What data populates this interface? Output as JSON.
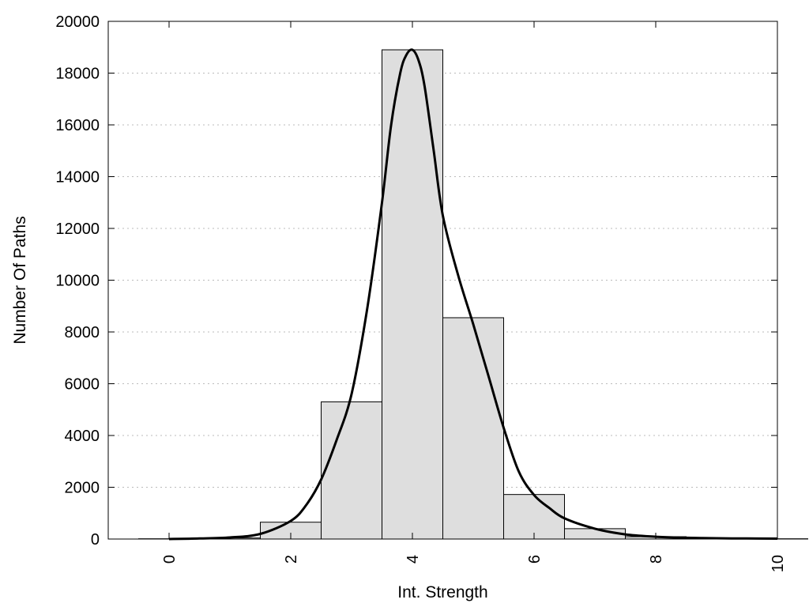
{
  "chart_data": {
    "type": "bar",
    "title": "",
    "xlabel": "Int. Strength",
    "ylabel": "Number Of Paths",
    "xlim": [
      -1,
      10
    ],
    "ylim": [
      0,
      20000
    ],
    "grid": "horizontal dotted",
    "legend": "none",
    "x_ticks": [
      0,
      2,
      4,
      6,
      8,
      10
    ],
    "y_ticks": [
      0,
      2000,
      4000,
      6000,
      8000,
      10000,
      12000,
      14000,
      16000,
      18000,
      20000
    ],
    "bars": [
      {
        "x": 0,
        "value": 10
      },
      {
        "x": 1,
        "value": 40
      },
      {
        "x": 2,
        "value": 650
      },
      {
        "x": 3,
        "value": 5300
      },
      {
        "x": 4,
        "value": 18900
      },
      {
        "x": 5,
        "value": 8550
      },
      {
        "x": 6,
        "value": 1720
      },
      {
        "x": 7,
        "value": 400
      },
      {
        "x": 8,
        "value": 90
      },
      {
        "x": 9,
        "value": 30
      },
      {
        "x": 10,
        "value": 10
      }
    ],
    "curve": {
      "x": [
        0,
        0.5,
        1,
        1.5,
        2,
        2.25,
        2.5,
        2.75,
        3,
        3.25,
        3.5,
        3.65,
        3.8,
        3.9,
        4,
        4.1,
        4.2,
        4.35,
        4.5,
        4.75,
        5,
        5.25,
        5.5,
        5.75,
        6,
        6.25,
        6.5,
        7,
        7.5,
        8,
        8.5,
        9,
        9.5,
        10
      ],
      "y": [
        0,
        20,
        60,
        200,
        700,
        1300,
        2300,
        3800,
        5600,
        8800,
        13000,
        16000,
        18000,
        18700,
        18900,
        18500,
        17500,
        15000,
        12500,
        10200,
        8300,
        6300,
        4300,
        2600,
        1700,
        1200,
        800,
        400,
        180,
        90,
        50,
        30,
        20,
        15
      ],
      "color": "#000000"
    },
    "bar_color": "#dedede"
  }
}
